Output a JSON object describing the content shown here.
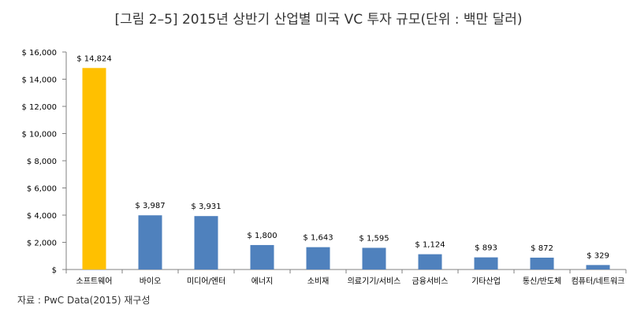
{
  "title": "[그림 2–5] 2015년 상반기 산업별 미국 VC 투자 규모(단위 : 백만 달러)",
  "source": "자료 : PwC Data(2015) 재구성",
  "colors": {
    "highlight": "#FFC000",
    "bar": "#4F81BD",
    "axis": "#808080",
    "text": "#000000"
  },
  "chart_data": {
    "type": "bar",
    "categories": [
      "소프트웨어",
      "바이오",
      "미디어/엔터",
      "에너지",
      "소비재",
      "의료기기/서비스",
      "금융서비스",
      "기타산업",
      "통신/반도체",
      "컴퓨터/네트워크"
    ],
    "values": [
      14824,
      3987,
      3931,
      1800,
      1643,
      1595,
      1124,
      893,
      872,
      329
    ],
    "data_labels": [
      "$ 14,824",
      "$ 3,987",
      "$ 3,931",
      "$ 1,800",
      "$ 1,643",
      "$ 1,595",
      "$ 1,124",
      "$ 893",
      "$ 872",
      "$ 329"
    ],
    "yticks": [
      0,
      2000,
      4000,
      6000,
      8000,
      10000,
      12000,
      14000,
      16000
    ],
    "ytick_labels": [
      "$",
      "$ 2,000",
      "$ 4,000",
      "$ 6,000",
      "$ 8,000",
      "$ 10,000",
      "$ 12,000",
      "$ 14,000",
      "$ 16,000"
    ],
    "ylim": [
      0,
      16000
    ],
    "highlight_index": 0,
    "grid": false,
    "legend": "none"
  }
}
